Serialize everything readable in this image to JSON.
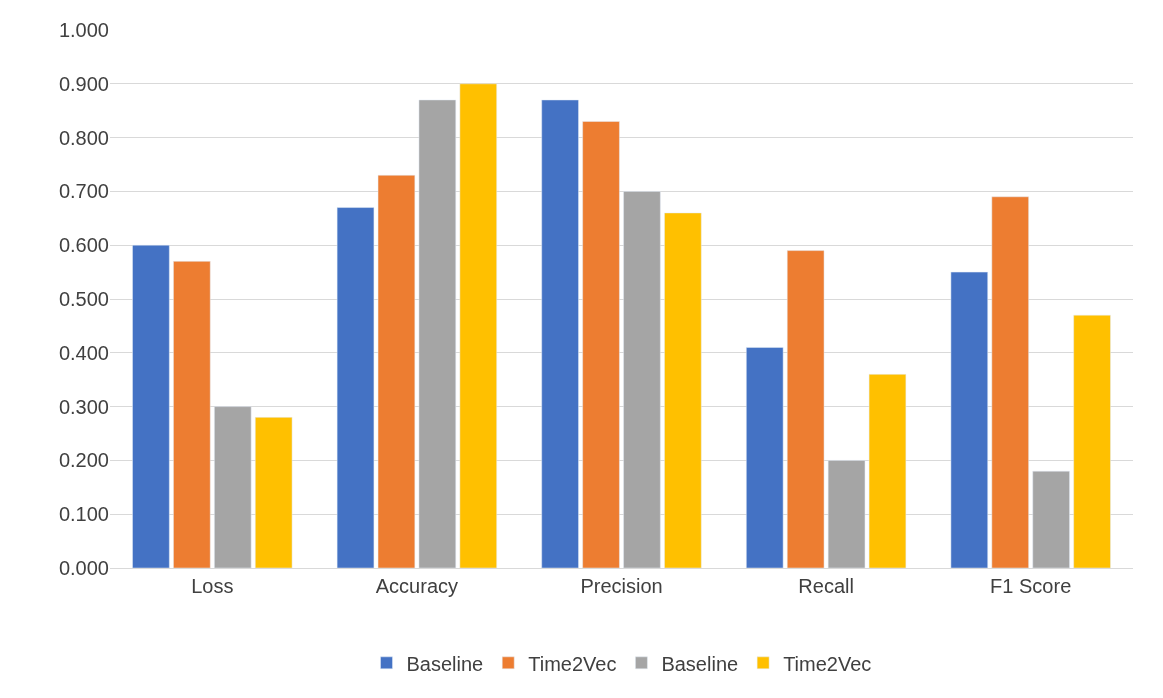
{
  "chart_data": {
    "type": "bar",
    "categories": [
      "Loss",
      "Accuracy",
      "Precision",
      "Recall",
      "F1 Score"
    ],
    "series": [
      {
        "name": "Baseline",
        "color": "#4472c4",
        "values": [
          0.6,
          0.67,
          0.87,
          0.41,
          0.55
        ]
      },
      {
        "name": "Time2Vec",
        "color": "#ed7d31",
        "values": [
          0.57,
          0.73,
          0.83,
          0.59,
          0.69
        ]
      },
      {
        "name": "Baseline",
        "color": "#a5a5a5",
        "values": [
          0.3,
          0.87,
          0.7,
          0.2,
          0.18
        ]
      },
      {
        "name": "Time2Vec",
        "color": "#ffc000",
        "values": [
          0.28,
          0.9,
          0.66,
          0.36,
          0.47
        ]
      }
    ],
    "ylim": [
      0,
      1.0
    ],
    "yticks": [
      {
        "value": 0,
        "label": "0.000"
      },
      {
        "value": 0.1,
        "label": "0.100"
      },
      {
        "value": 0.2,
        "label": "0.200"
      },
      {
        "value": 0.3,
        "label": "0.300"
      },
      {
        "value": 0.4,
        "label": "0.400"
      },
      {
        "value": 0.5,
        "label": "0.500"
      },
      {
        "value": 0.6,
        "label": "0.600"
      },
      {
        "value": 0.7,
        "label": "0.700"
      },
      {
        "value": 0.8,
        "label": "0.800"
      },
      {
        "value": 0.9,
        "label": "0.900"
      },
      {
        "value": 1.0,
        "label": "1.000"
      }
    ],
    "grid": "y",
    "legend": "bottom"
  }
}
